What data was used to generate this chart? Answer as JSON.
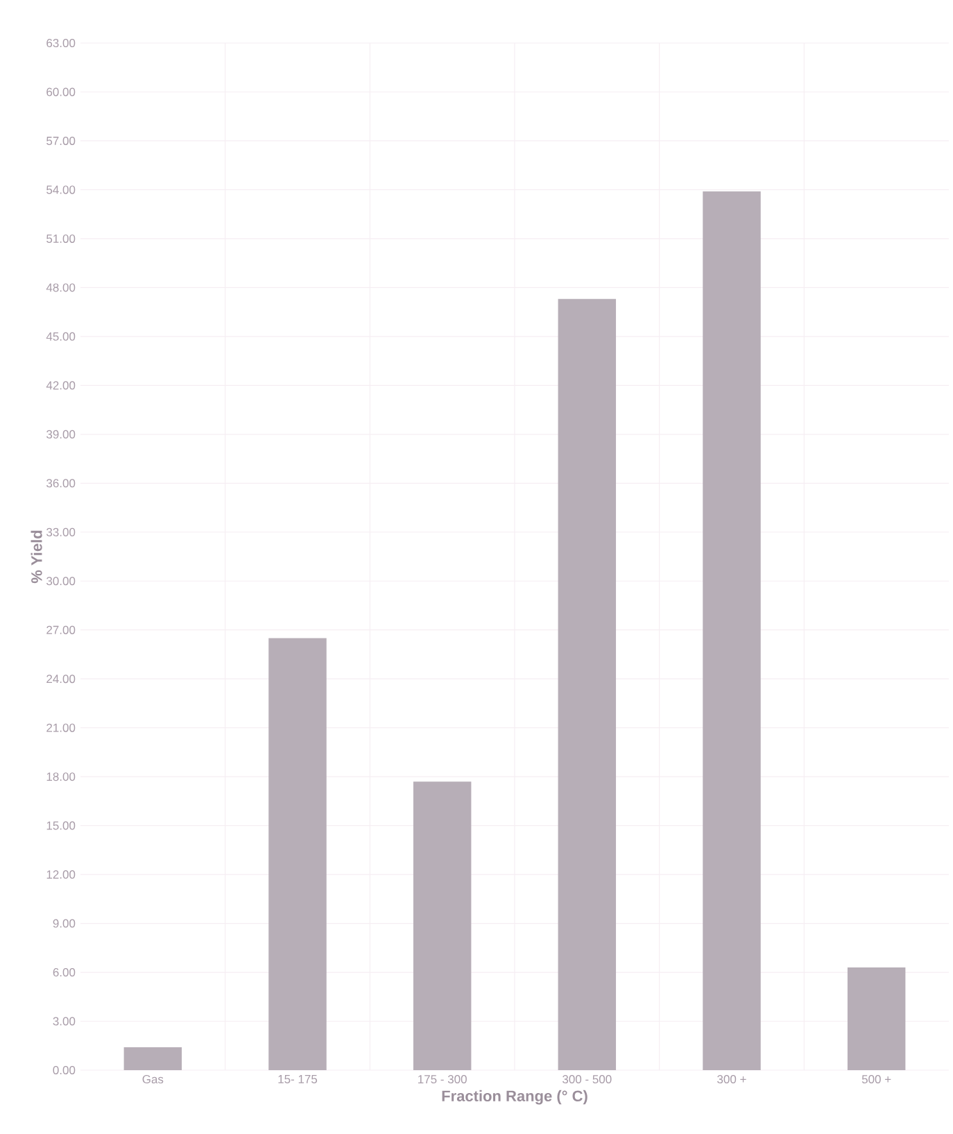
{
  "chart_data": {
    "type": "bar",
    "xlabel": "Fraction Range (° C)",
    "ylabel": "% Yield",
    "categories": [
      "Gas",
      "15- 175",
      "175 - 300",
      "300 - 500",
      "300 +",
      "500 +"
    ],
    "values": [
      1.4,
      26.5,
      17.7,
      47.3,
      53.9,
      6.3
    ],
    "color": "#b7aeb7",
    "ylim": [
      0,
      63
    ],
    "yticks": [
      {
        "value": 0,
        "label": "0.00"
      },
      {
        "value": 3,
        "label": "3.00"
      },
      {
        "value": 6,
        "label": "6.00"
      },
      {
        "value": 9,
        "label": "9.00"
      },
      {
        "value": 12,
        "label": "12.00"
      },
      {
        "value": 15,
        "label": "15.00"
      },
      {
        "value": 18,
        "label": "18.00"
      },
      {
        "value": 21,
        "label": "21.00"
      },
      {
        "value": 24,
        "label": "24.00"
      },
      {
        "value": 27,
        "label": "27.00"
      },
      {
        "value": 30,
        "label": "30.00"
      },
      {
        "value": 33,
        "label": "33.00"
      },
      {
        "value": 36,
        "label": "36.00"
      },
      {
        "value": 39,
        "label": "39.00"
      },
      {
        "value": 42,
        "label": "42.00"
      },
      {
        "value": 45,
        "label": "45.00"
      },
      {
        "value": 48,
        "label": "48.00"
      },
      {
        "value": 51,
        "label": "51.00"
      },
      {
        "value": 54,
        "label": "54.00"
      },
      {
        "value": 57,
        "label": "57.00"
      },
      {
        "value": 60,
        "label": "60.00"
      },
      {
        "value": 63,
        "label": "63.00"
      }
    ],
    "grid": true
  }
}
